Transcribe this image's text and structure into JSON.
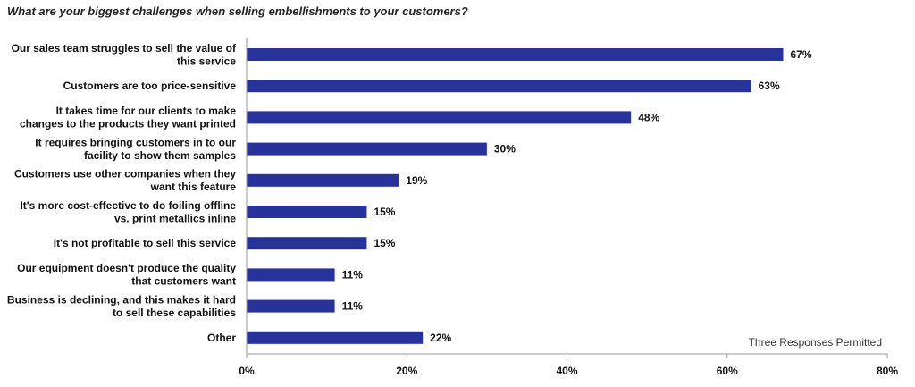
{
  "chart_data": {
    "type": "bar",
    "orientation": "horizontal",
    "title": "What are your biggest challenges when selling embellishments to your customers?",
    "categories": [
      [
        "Our sales team struggles to sell the value of",
        "this service"
      ],
      [
        "Customers are too price-sensitive"
      ],
      [
        "It takes time for our clients to make",
        "changes to the products they want printed"
      ],
      [
        "It requires bringing customers in to our",
        "facility to show them samples"
      ],
      [
        "Customers use other companies when they",
        "want this feature"
      ],
      [
        "It's more cost-effective to do foiling offline",
        "vs. print metallics inline"
      ],
      [
        "It's not profitable to sell this service"
      ],
      [
        "Our equipment doesn't produce the quality",
        "that customers want"
      ],
      [
        "Business is declining, and this makes it hard",
        "to sell these capabilities"
      ],
      [
        "Other"
      ]
    ],
    "values": [
      67,
      63,
      48,
      30,
      19,
      15,
      15,
      11,
      11,
      22
    ],
    "data_labels": [
      "67%",
      "63%",
      "48%",
      "30%",
      "19%",
      "15%",
      "15%",
      "11%",
      "11%",
      "22%"
    ],
    "xlim": [
      0,
      80
    ],
    "xticks": [
      0,
      20,
      40,
      60,
      80
    ],
    "xtick_labels": [
      "0%",
      "20%",
      "40%",
      "60%",
      "80%"
    ],
    "grid": false,
    "bar_color": "#27339b",
    "note": "Three Responses Permitted"
  }
}
